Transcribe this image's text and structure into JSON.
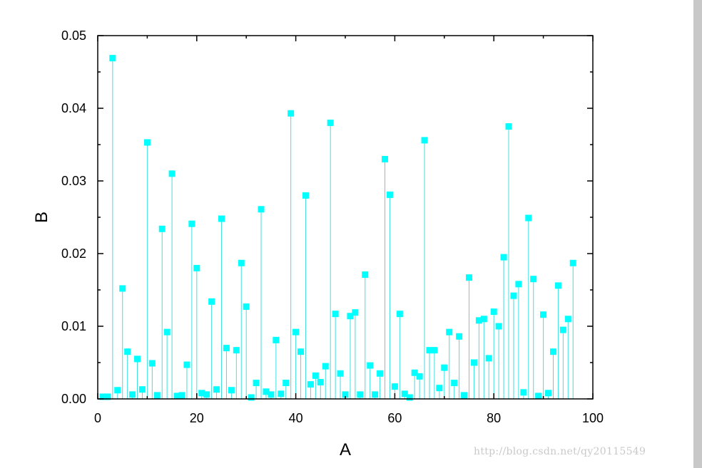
{
  "watermark": "http://blog.csdn.net/qy20115549",
  "chart_data": {
    "type": "scatter",
    "style": "stem with square markers",
    "marker_color": "#00FFFF",
    "stem_color": "#40E0E0",
    "xlabel": "A",
    "ylabel": "B",
    "xlim": [
      0,
      100
    ],
    "ylim": [
      0,
      0.05
    ],
    "xticks": [
      "0",
      "20",
      "40",
      "60",
      "80",
      "100"
    ],
    "yticks": [
      "0.00",
      "0.01",
      "0.02",
      "0.03",
      "0.04",
      "0.05"
    ],
    "grid": false,
    "series": [
      {
        "x": [
          1,
          2,
          3,
          4,
          5,
          6,
          7,
          8,
          9,
          10,
          11,
          12,
          13,
          14,
          15,
          16,
          17,
          18,
          19,
          20,
          21,
          22,
          23,
          24,
          25,
          26,
          27,
          28,
          29,
          30,
          31,
          32,
          33,
          34,
          35,
          36,
          37,
          38,
          39,
          40,
          41,
          42,
          43,
          44,
          45,
          46,
          47,
          48,
          49,
          50,
          51,
          52,
          53,
          54,
          55,
          56,
          57,
          58,
          59,
          60,
          61,
          62,
          63,
          64,
          65,
          66,
          67,
          68,
          69,
          70,
          71,
          72,
          73,
          74,
          75,
          76,
          77,
          78,
          79,
          80,
          81,
          82,
          83,
          84,
          85,
          86,
          87,
          88,
          89,
          90,
          91,
          92,
          93,
          94,
          95,
          96
        ],
        "y": [
          0.0003,
          0.0003,
          0.0469,
          0.0012,
          0.0152,
          0.0065,
          0.0006,
          0.0055,
          0.0013,
          0.0353,
          0.0049,
          0.0005,
          0.0234,
          0.0092,
          0.031,
          0.0004,
          0.0005,
          0.0047,
          0.0241,
          0.018,
          0.0008,
          0.0006,
          0.0134,
          0.0013,
          0.0248,
          0.007,
          0.0012,
          0.0067,
          0.0187,
          0.0127,
          0.0002,
          0.0022,
          0.0261,
          0.001,
          0.0006,
          0.0081,
          0.0007,
          0.0022,
          0.0393,
          0.0092,
          0.0065,
          0.028,
          0.002,
          0.0032,
          0.0023,
          0.0045,
          0.038,
          0.0117,
          0.0035,
          0.0006,
          0.0114,
          0.0119,
          0.0006,
          0.0171,
          0.0046,
          0.0006,
          0.0035,
          0.033,
          0.0281,
          0.0017,
          0.0117,
          0.0007,
          0.0002,
          0.0036,
          0.0031,
          0.0356,
          0.0067,
          0.0067,
          0.0015,
          0.0043,
          0.0092,
          0.0022,
          0.0086,
          0.0005,
          0.0167,
          0.005,
          0.0108,
          0.011,
          0.0056,
          0.012,
          0.01,
          0.0195,
          0.0375,
          0.0142,
          0.0158,
          0.0009,
          0.0249,
          0.0165,
          0.0004,
          0.0116,
          0.0008,
          0.0065,
          0.0156,
          0.0095,
          0.011,
          0.0187
        ]
      }
    ]
  }
}
